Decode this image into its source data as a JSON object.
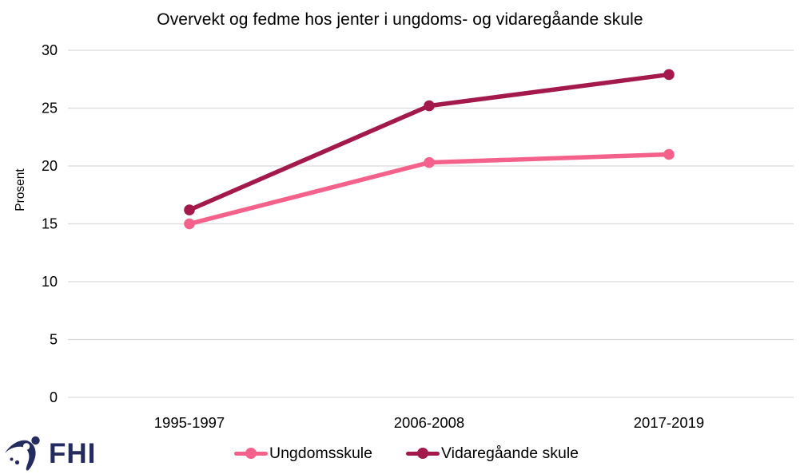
{
  "chart_data": {
    "type": "line",
    "title": "Overvekt og fedme hos jenter i ungdoms- og vidaregåande skule",
    "ylabel": "Prosent",
    "xlabel": "",
    "categories": [
      "1995-1997",
      "2006-2008",
      "2017-2019"
    ],
    "series": [
      {
        "name": "Ungdomsskule",
        "color": "#F4618A",
        "values": [
          15.0,
          20.3,
          21.0
        ]
      },
      {
        "name": "Vidaregåande skule",
        "color": "#A4194B",
        "values": [
          16.2,
          25.2,
          27.9
        ]
      }
    ],
    "ylim": [
      0,
      30
    ],
    "yticks": [
      0,
      5,
      10,
      15,
      20,
      25,
      30
    ],
    "grid": "horizontal-only",
    "legend_position": "bottom-center"
  },
  "footer": {
    "logo_text": "FHI"
  },
  "palette": {
    "gridline": "#D9D9D9",
    "text": "#000000",
    "logo_navy": "#242B5E",
    "background": "#FFFFFF"
  }
}
